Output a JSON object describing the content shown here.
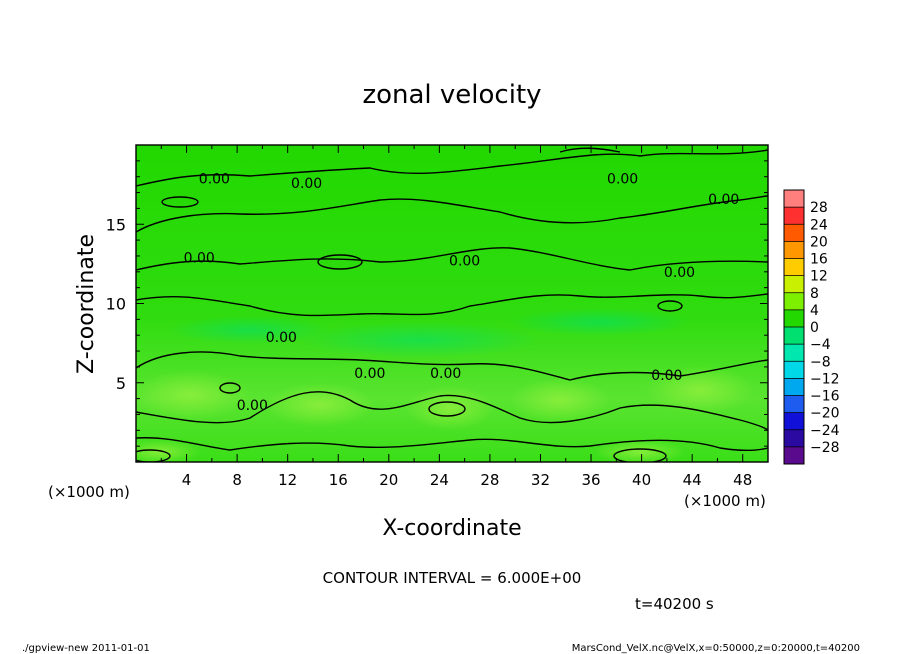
{
  "chart_data": {
    "type": "heatmap",
    "title": "zonal velocity",
    "xlabel": "X-coordinate",
    "ylabel": "Z-coordinate",
    "x_unit_left": "(×1000 m)",
    "x_unit_right": "(×1000 m)",
    "xlim": [
      0,
      50
    ],
    "ylim": [
      0,
      20
    ],
    "x_ticks": [
      4,
      8,
      12,
      16,
      20,
      24,
      28,
      32,
      36,
      40,
      44,
      48
    ],
    "y_ticks": [
      5,
      10,
      15
    ],
    "contour_labels": [
      {
        "text": "0.00",
        "x": 6.2,
        "z": 17.9
      },
      {
        "text": "0.00",
        "x": 13.5,
        "z": 17.6
      },
      {
        "text": "0.00",
        "x": 38.5,
        "z": 17.9
      },
      {
        "text": "0.00",
        "x": 46.5,
        "z": 16.6
      },
      {
        "text": "0.00",
        "x": 5.0,
        "z": 12.9
      },
      {
        "text": "0.00",
        "x": 26.0,
        "z": 12.7
      },
      {
        "text": "0.00",
        "x": 43.0,
        "z": 12.0
      },
      {
        "text": "0.00",
        "x": 11.5,
        "z": 7.9
      },
      {
        "text": "0.00",
        "x": 18.5,
        "z": 5.6
      },
      {
        "text": "0.00",
        "x": 24.5,
        "z": 5.6
      },
      {
        "text": "0.00",
        "x": 42.0,
        "z": 5.5
      },
      {
        "text": "0.00",
        "x": 9.2,
        "z": 3.6
      }
    ],
    "colorbar": {
      "levels": [
        "28",
        "24",
        "20",
        "16",
        "12",
        "8",
        "4",
        "0",
        "−4",
        "−8",
        "−12",
        "−16",
        "−20",
        "−24",
        "−28"
      ],
      "colors": [
        "#ff7f7f",
        "#ff3030",
        "#ff5a00",
        "#ff9800",
        "#ffcc00",
        "#c8f000",
        "#7cf000",
        "#22d800",
        "#00e070",
        "#00e8b0",
        "#00d8e8",
        "#00a8f0",
        "#1e5cf0",
        "#1010d8",
        "#2a0aa0",
        "#5a0a8c"
      ]
    },
    "annotations": {
      "contour_interval": "CONTOUR INTERVAL = 6.000E+00",
      "time": "t=40200 s"
    }
  },
  "footer": {
    "left": "./gpview-new 2011-01-01",
    "right": "MarsCond_VelX.nc@VelX,x=0:50000,z=0:20000,t=40200"
  }
}
